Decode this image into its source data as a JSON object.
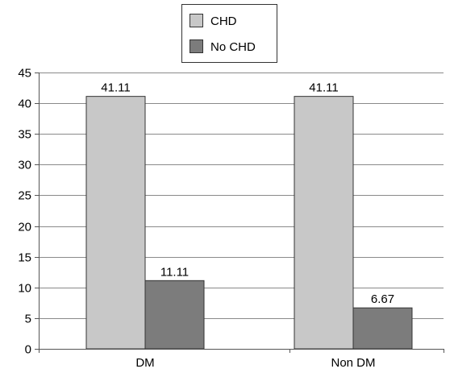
{
  "chart_data": {
    "type": "bar",
    "categories": [
      "DM",
      "Non DM"
    ],
    "series": [
      {
        "name": "CHD",
        "values": [
          41.11,
          41.11
        ],
        "labels": [
          "41.11",
          "41.11"
        ],
        "color": "#c8c8c8"
      },
      {
        "name": "No CHD",
        "values": [
          11.11,
          6.67
        ],
        "labels": [
          "11.11",
          "6.67"
        ],
        "color": "#7c7c7c"
      }
    ],
    "ylim": [
      0,
      45
    ],
    "yticks": [
      "0",
      "5",
      "10",
      "15",
      "20",
      "25",
      "30",
      "35",
      "40",
      "45"
    ],
    "grid": true,
    "legend_position": "top-center",
    "title": "",
    "xlabel": "",
    "ylabel": ""
  }
}
